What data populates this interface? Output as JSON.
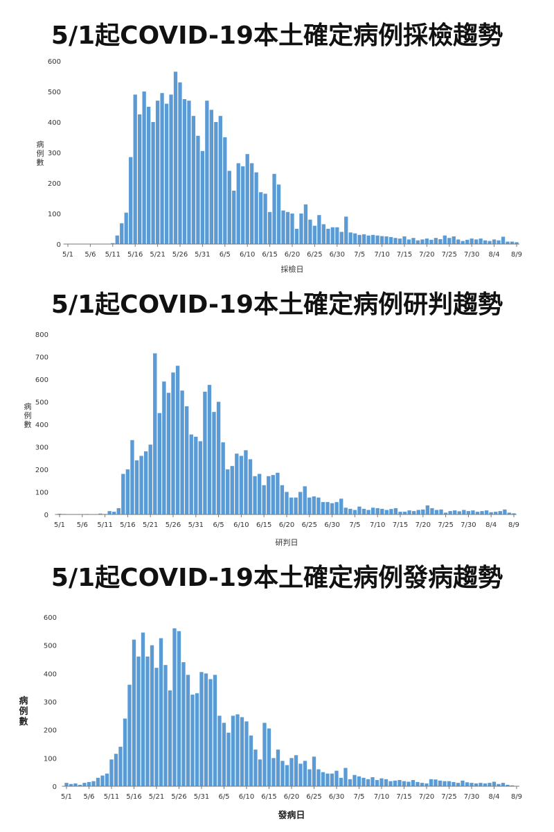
{
  "chart_data": [
    {
      "type": "bar",
      "title": "5/1起COVID-19本土確定病例採檢趨勢",
      "xlabel": "採檢日",
      "ylabel": "病例數",
      "ylim": [
        0,
        600
      ],
      "yticks": [
        0,
        100,
        200,
        300,
        400,
        500,
        600
      ],
      "xtick_labels": [
        "5/1",
        "5/6",
        "5/11",
        "5/16",
        "5/21",
        "5/26",
        "5/31",
        "6/5",
        "6/10",
        "6/15",
        "6/20",
        "6/25",
        "6/30",
        "7/5",
        "7/10",
        "7/15",
        "7/20",
        "7/25",
        "7/30",
        "8/4",
        "8/9"
      ],
      "color": "#5b9bd5",
      "grid": false,
      "values": [
        0,
        0,
        0,
        0,
        0,
        0,
        0,
        0,
        0,
        1,
        3,
        28,
        68,
        103,
        285,
        490,
        425,
        500,
        450,
        400,
        470,
        495,
        460,
        490,
        565,
        530,
        475,
        470,
        420,
        355,
        305,
        470,
        440,
        400,
        420,
        350,
        240,
        175,
        265,
        255,
        295,
        265,
        235,
        170,
        165,
        105,
        230,
        195,
        110,
        105,
        100,
        50,
        100,
        130,
        80,
        60,
        95,
        65,
        50,
        55,
        55,
        40,
        90,
        38,
        35,
        30,
        32,
        28,
        30,
        28,
        26,
        25,
        23,
        20,
        18,
        25,
        15,
        20,
        12,
        15,
        18,
        14,
        20,
        16,
        28,
        20,
        25,
        15,
        10,
        14,
        18,
        15,
        18,
        12,
        10,
        15,
        12,
        24,
        8,
        8,
        6
      ],
      "category_start": "5/1"
    },
    {
      "type": "bar",
      "title": "5/1起COVID-19本土確定病例研判趨勢",
      "xlabel": "研判日",
      "ylabel": "病例數",
      "ylim": [
        0,
        800
      ],
      "yticks": [
        0,
        100,
        200,
        300,
        400,
        500,
        600,
        700,
        800
      ],
      "xtick_labels": [
        "5/1",
        "5/6",
        "5/11",
        "5/16",
        "5/21",
        "5/26",
        "5/31",
        "6/5",
        "6/10",
        "6/15",
        "6/20",
        "6/25",
        "6/30",
        "7/5",
        "7/10",
        "7/15",
        "7/20",
        "7/25",
        "7/30",
        "8/4",
        "8/9"
      ],
      "color": "#5b9bd5",
      "grid": false,
      "values": [
        3,
        2,
        0,
        0,
        0,
        0,
        2,
        0,
        1,
        4,
        2,
        15,
        12,
        28,
        180,
        200,
        330,
        240,
        260,
        280,
        310,
        715,
        450,
        590,
        540,
        630,
        660,
        550,
        480,
        355,
        345,
        325,
        545,
        575,
        455,
        500,
        320,
        200,
        215,
        270,
        260,
        285,
        245,
        170,
        180,
        130,
        170,
        175,
        185,
        130,
        100,
        75,
        75,
        100,
        125,
        75,
        80,
        75,
        55,
        55,
        50,
        55,
        70,
        30,
        25,
        20,
        35,
        25,
        20,
        30,
        28,
        25,
        20,
        24,
        28,
        12,
        12,
        18,
        15,
        20,
        22,
        40,
        28,
        20,
        22,
        8,
        15,
        18,
        14,
        20,
        15,
        18,
        12,
        15,
        18,
        10,
        12,
        15,
        22,
        8,
        5
      ],
      "category_start": "5/1"
    },
    {
      "type": "bar",
      "title": "5/1起COVID-19本土確定病例發病趨勢",
      "xlabel": "發病日",
      "ylabel": "病例數",
      "ylim": [
        0,
        600
      ],
      "yticks": [
        0,
        100,
        200,
        300,
        400,
        500,
        600
      ],
      "xtick_labels": [
        "5/1",
        "5/6",
        "5/11",
        "5/16",
        "5/21",
        "5/26",
        "5/31",
        "6/5",
        "6/10",
        "6/15",
        "6/20",
        "6/25",
        "6/30",
        "7/5",
        "7/10",
        "7/15",
        "7/20",
        "7/25",
        "7/30",
        "8/4",
        "8/9"
      ],
      "color": "#5b9bd5",
      "grid": false,
      "values": [
        12,
        8,
        10,
        5,
        12,
        15,
        18,
        30,
        38,
        45,
        95,
        115,
        140,
        240,
        360,
        520,
        460,
        545,
        460,
        500,
        420,
        525,
        430,
        340,
        560,
        550,
        440,
        395,
        325,
        330,
        405,
        400,
        380,
        395,
        250,
        225,
        190,
        250,
        255,
        245,
        230,
        180,
        130,
        95,
        225,
        205,
        100,
        130,
        90,
        75,
        100,
        110,
        80,
        90,
        60,
        105,
        60,
        50,
        45,
        45,
        55,
        30,
        65,
        25,
        40,
        35,
        30,
        25,
        32,
        22,
        28,
        25,
        18,
        20,
        22,
        18,
        16,
        22,
        15,
        12,
        10,
        25,
        24,
        20,
        18,
        18,
        15,
        12,
        20,
        14,
        12,
        10,
        12,
        10,
        12,
        16,
        8,
        12,
        5,
        3,
        0
      ],
      "category_start": "5/1"
    }
  ]
}
